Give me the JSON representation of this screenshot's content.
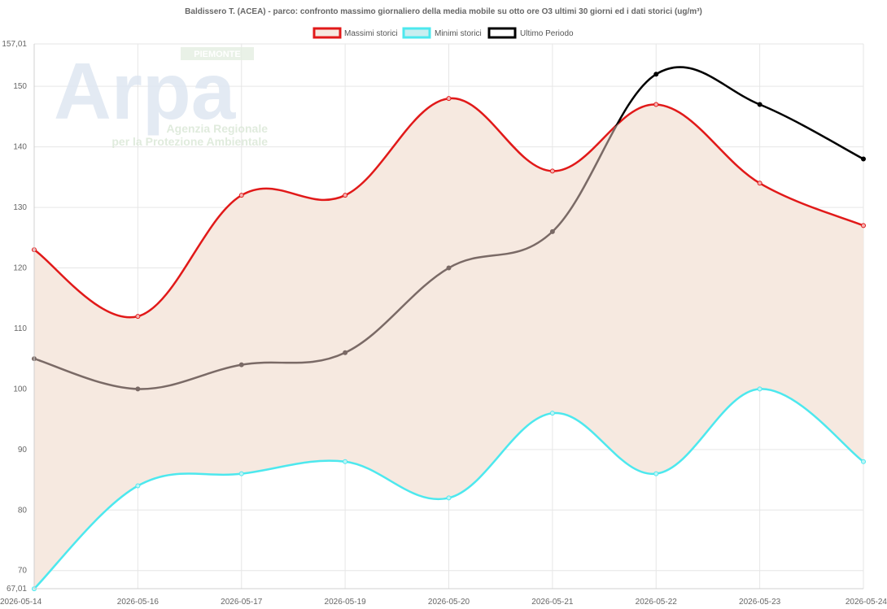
{
  "chart_data": {
    "type": "line",
    "title": "Baldissero T. (ACEA) - parco: confronto massimo giornaliero della media mobile su otto ore O3 ultimi 30 giorni ed i dati storici (ug/m³)",
    "categories": [
      "2026-05-14",
      "2026-05-16",
      "2026-05-17",
      "2026-05-19",
      "2026-05-20",
      "2026-05-21",
      "2026-05-22",
      "2026-05-23",
      "2026-05-24"
    ],
    "ylim": [
      67.01,
      157.01
    ],
    "y_ticks": [
      "67,01",
      "70",
      "80",
      "90",
      "100",
      "110",
      "120",
      "130",
      "140",
      "150",
      "157,01"
    ],
    "grid": true,
    "legend_position": "top",
    "series": [
      {
        "name": "Massimi storici",
        "color": "#e11919",
        "values": [
          123,
          112,
          132,
          132,
          148,
          136,
          147,
          134,
          127
        ]
      },
      {
        "name": "Minimi storici",
        "color": "#4de8ee",
        "values": [
          67,
          84,
          86,
          88,
          82,
          96,
          86,
          100,
          88
        ]
      },
      {
        "name": "Ultimo Periodo",
        "color": "#000000",
        "values": [
          105,
          100,
          104,
          106,
          120,
          126,
          152,
          147,
          138
        ]
      }
    ],
    "band_fill": "#f6e9e0",
    "below_band_color": "#7a6a66"
  },
  "watermark": {
    "logo_word": "Arpa",
    "region_badge": "PIEMONTE",
    "line1": "Agenzia Regionale",
    "line2": "per la Protezione Ambientale"
  }
}
